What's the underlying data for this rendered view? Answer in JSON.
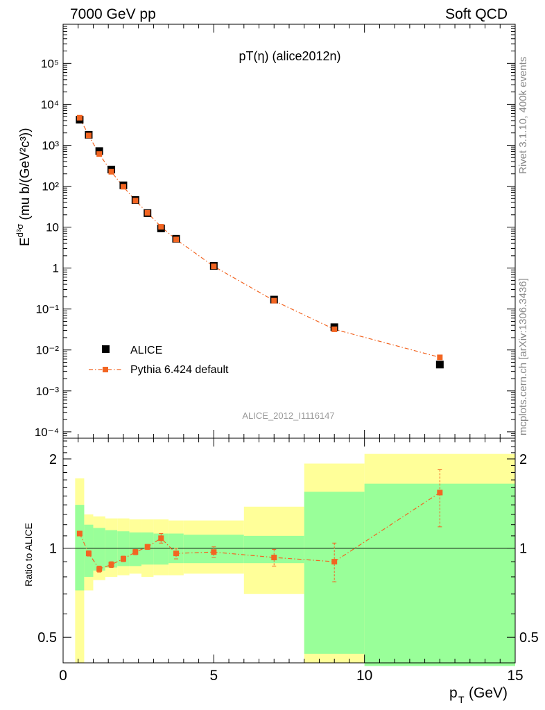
{
  "header": {
    "left": "7000 GeV pp",
    "right": "Soft QCD"
  },
  "side_labels": {
    "rivet": "Rivet 3.1.10,  400k events",
    "mcplots": "mcplots.cern.ch [arXiv:1306.3436]"
  },
  "colors": {
    "data": "#000000",
    "mc": "#f26522",
    "band_inner": "#99ff99",
    "band_outer": "#ffff99",
    "watermark": "#999999"
  },
  "chart_data": [
    {
      "type": "scatter",
      "title": "pT(η) (alice2012n)",
      "watermark": "ALICE_2012_I1116147",
      "xlabel": "",
      "xlim": [
        0,
        15
      ],
      "ylabel": "E d³σ/dp³ (mu b/(GeV²c³))",
      "ylog": true,
      "ylim": [
        7e-05,
        900000
      ],
      "yticklabels": [
        "10⁻⁴",
        "10⁻³",
        "10⁻²",
        "10⁻¹",
        "1",
        "10",
        "10²",
        "10³",
        "10⁴",
        "10⁵"
      ],
      "legend": {
        "position": "bottom-left",
        "entries": [
          "ALICE",
          "Pythia 6.424 default"
        ]
      },
      "series": [
        {
          "name": "ALICE",
          "x": [
            0.55,
            0.85,
            1.2,
            1.6,
            2.0,
            2.4,
            2.8,
            3.25,
            3.75,
            5.0,
            7.0,
            9.0,
            12.5
          ],
          "y": [
            4200,
            1800,
            720,
            255,
            105,
            46,
            22,
            9.3,
            5.2,
            1.13,
            0.17,
            0.036,
            0.0044
          ]
        },
        {
          "name": "Pythia 6.424 default",
          "x": [
            0.55,
            0.85,
            1.2,
            1.6,
            2.0,
            2.4,
            2.8,
            3.25,
            3.75,
            5.0,
            7.0,
            9.0,
            12.5
          ],
          "y": [
            4700,
            1730,
            610,
            225,
            97,
            44.5,
            22.4,
            10.2,
            5.0,
            1.1,
            0.16,
            0.032,
            0.0066
          ]
        }
      ]
    },
    {
      "type": "line",
      "xlabel": "p_T (GeV)",
      "xlim": [
        0,
        15
      ],
      "xticks": [
        0,
        5,
        10,
        15
      ],
      "ylabel": "Ratio to ALICE",
      "ylog": true,
      "ylim": [
        0.41,
        2.35
      ],
      "yticks": [
        0.5,
        1,
        2
      ],
      "bands": {
        "edges": [
          0.4,
          0.7,
          1.0,
          1.4,
          1.8,
          2.2,
          2.6,
          3.0,
          3.5,
          4.0,
          6.0,
          8.0,
          10.0,
          15.0
        ],
        "inner_low": [
          0.72,
          0.8,
          0.84,
          0.86,
          0.87,
          0.87,
          0.88,
          0.88,
          0.89,
          0.89,
          0.89,
          0.44,
          0.4
        ],
        "inner_high": [
          1.4,
          1.2,
          1.17,
          1.15,
          1.14,
          1.13,
          1.13,
          1.12,
          1.12,
          1.11,
          1.1,
          1.55,
          1.65
        ],
        "outer_low": [
          0.41,
          0.72,
          0.78,
          0.8,
          0.81,
          0.82,
          0.8,
          0.81,
          0.81,
          0.82,
          0.7,
          0.41,
          0.41
        ],
        "outer_high": [
          1.72,
          1.3,
          1.28,
          1.26,
          1.26,
          1.25,
          1.25,
          1.25,
          1.24,
          1.24,
          1.38,
          1.93,
          2.08
        ]
      },
      "series": [
        {
          "name": "Pythia 6.424 default",
          "x": [
            0.55,
            0.85,
            1.2,
            1.6,
            2.0,
            2.4,
            2.8,
            3.25,
            3.75,
            5.0,
            7.0,
            9.0,
            12.5
          ],
          "y": [
            1.12,
            0.96,
            0.85,
            0.88,
            0.92,
            0.97,
            1.01,
            1.08,
            0.96,
            0.97,
            0.93,
            0.9,
            1.54
          ],
          "err_low": [
            0.02,
            0.02,
            0.02,
            0.02,
            0.02,
            0.02,
            0.02,
            0.04,
            0.04,
            0.04,
            0.06,
            0.13,
            0.36
          ],
          "err_high": [
            0.02,
            0.02,
            0.02,
            0.02,
            0.02,
            0.02,
            0.02,
            0.04,
            0.04,
            0.04,
            0.06,
            0.14,
            0.3
          ]
        }
      ]
    }
  ]
}
